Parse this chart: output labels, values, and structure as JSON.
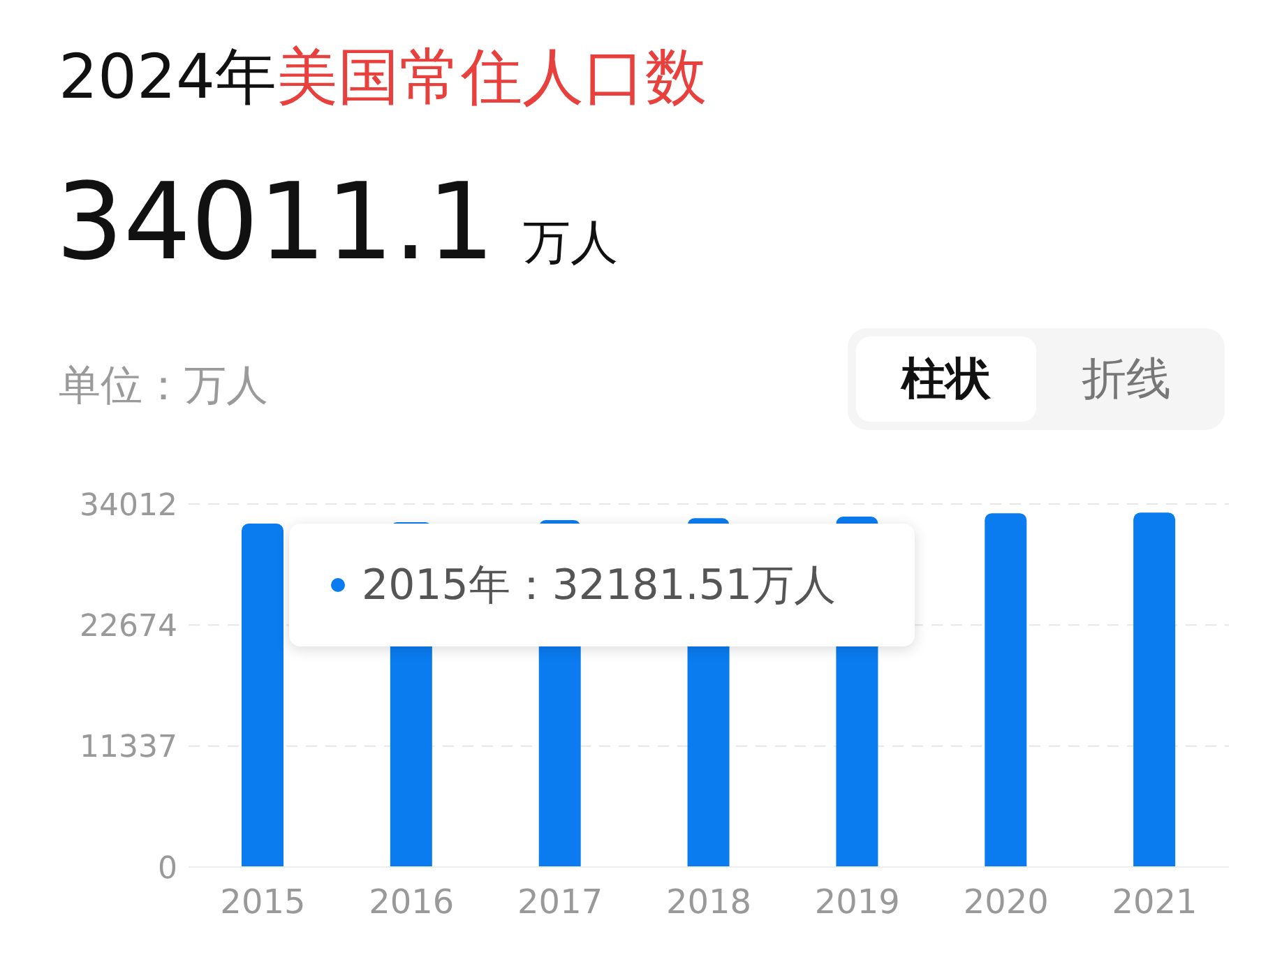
{
  "chart_data": {
    "type": "bar",
    "title": "2024年美国常住人口数",
    "subtitle": "34011.1 万人",
    "ylabel": "单位：万人",
    "categories": [
      "2015",
      "2016",
      "2017",
      "2018",
      "2019",
      "2020",
      "2021"
    ],
    "values": [
      32181.51,
      32307,
      32510,
      32684,
      32832,
      33150,
      33203
    ],
    "color": "#0a7cf0",
    "ylim": [
      0,
      34012
    ],
    "yticks": [
      0,
      11337,
      22674,
      34012
    ],
    "grid": "y",
    "annotations": [
      "2015年：32181.51万人",
      "柱状",
      "折线"
    ]
  }
}
